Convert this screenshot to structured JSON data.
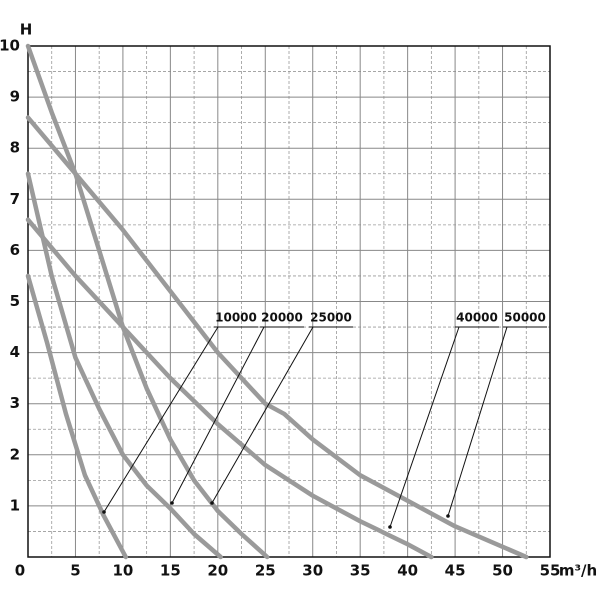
{
  "chart_data": {
    "type": "line",
    "x_label": "m³/h",
    "y_label": "H",
    "xlim": [
      0,
      55
    ],
    "ylim": [
      0,
      10
    ],
    "xticks": [
      0,
      5,
      10,
      15,
      20,
      25,
      30,
      35,
      40,
      45,
      50,
      55
    ],
    "yticks": [
      1,
      2,
      3,
      4,
      5,
      6,
      7,
      8,
      9,
      10
    ],
    "grid": true,
    "series": [
      {
        "name": "10000",
        "color": "#9a9a9a",
        "x": [
          0,
          2,
          4,
          6,
          8,
          10.3
        ],
        "values": [
          5.5,
          4.2,
          2.8,
          1.6,
          0.8,
          0
        ]
      },
      {
        "name": "20000",
        "color": "#9a9a9a",
        "x": [
          0,
          2.5,
          5,
          7.5,
          10,
          12.5,
          15,
          17.5,
          20.3
        ],
        "values": [
          7.5,
          5.5,
          3.9,
          2.9,
          2.0,
          1.4,
          0.95,
          0.45,
          0
        ]
      },
      {
        "name": "25000",
        "color": "#9a9a9a",
        "x": [
          0,
          2.5,
          5,
          7.5,
          10,
          12.5,
          15,
          17.5,
          20,
          22.5,
          25.2
        ],
        "values": [
          10,
          8.7,
          7.5,
          6.0,
          4.5,
          3.3,
          2.3,
          1.5,
          0.9,
          0.45,
          0
        ]
      },
      {
        "name": "40000",
        "color": "#9a9a9a",
        "x": [
          0,
          5,
          10,
          15,
          20,
          25,
          30,
          35,
          40,
          42.5
        ],
        "values": [
          6.6,
          5.5,
          4.5,
          3.5,
          2.6,
          1.8,
          1.2,
          0.7,
          0.25,
          0
        ]
      },
      {
        "name": "50000",
        "color": "#9a9a9a",
        "x": [
          0,
          5,
          10,
          15,
          20,
          25,
          27,
          30,
          35,
          40,
          45,
          52.5
        ],
        "values": [
          8.6,
          7.5,
          6.4,
          5.2,
          4.0,
          3.0,
          2.8,
          2.3,
          1.6,
          1.1,
          0.6,
          0
        ]
      }
    ]
  }
}
